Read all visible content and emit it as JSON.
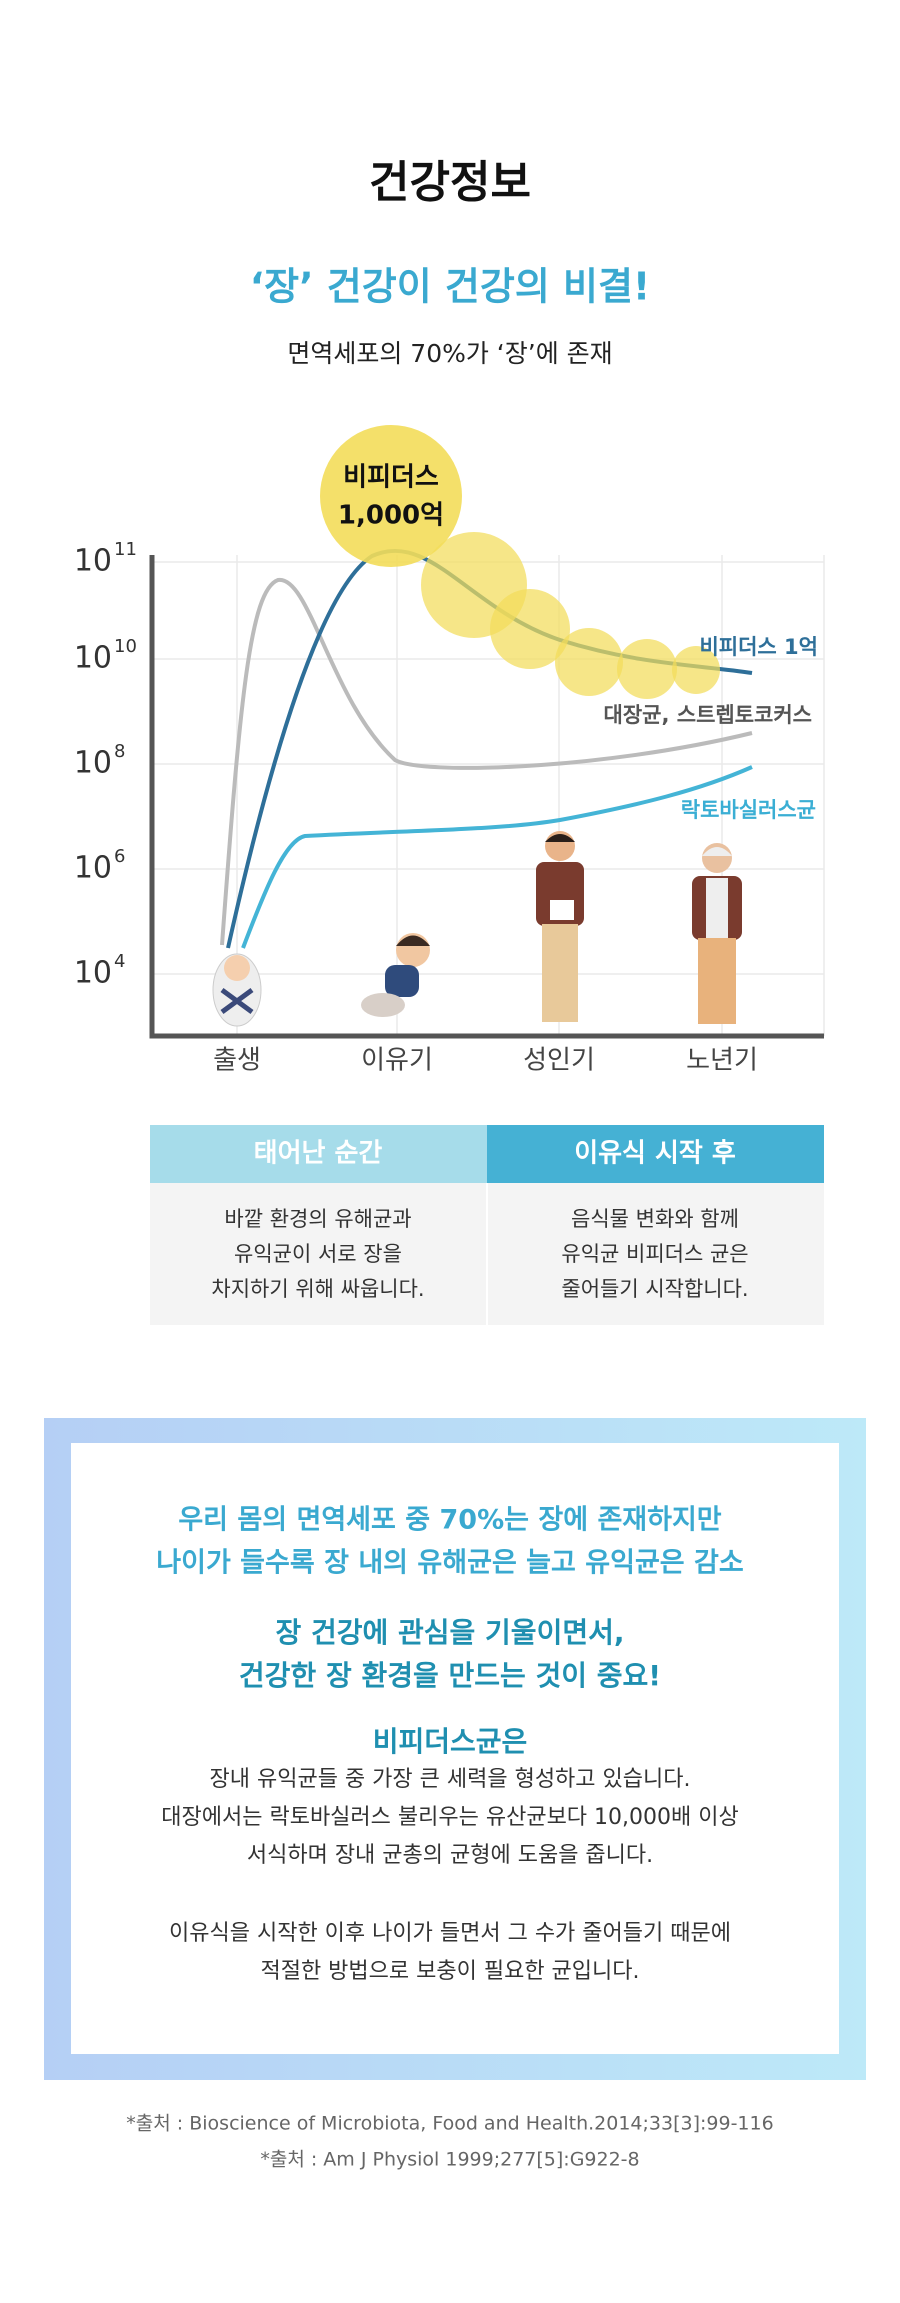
{
  "header": {
    "title": "건강정보",
    "headline": "‘장’ 건강이 건강의 비결!",
    "subtitle": "면역세포의 70%가 ‘장’에 존재"
  },
  "chart": {
    "yticks": [
      {
        "base": "10",
        "exp": "11"
      },
      {
        "base": "10",
        "exp": "10"
      },
      {
        "base": "10",
        "exp": "8"
      },
      {
        "base": "10",
        "exp": "6"
      },
      {
        "base": "10",
        "exp": "4"
      }
    ],
    "xlabels": [
      "출생",
      "이유기",
      "성인기",
      "노년기"
    ],
    "bubble_label": [
      "비피더스",
      "1,000억"
    ],
    "series_labels": [
      "비피더스 1억",
      "대장균, 스트렙토코커스",
      "락토바실러스균"
    ]
  },
  "table": {
    "headers": [
      "태어난 순간",
      "이유식 시작 후"
    ],
    "cells": [
      [
        "바깥 환경의 유해균과",
        "유익균이 서로 장을",
        "차지하기 위해 싸웁니다."
      ],
      [
        "음식물 변화와 함께",
        "유익균 비피더스 균은",
        "줄어들기 시작합니다."
      ]
    ]
  },
  "summary": {
    "highlight": [
      "우리 몸의 면역세포 중 70%는 장에 존재하지만",
      "나이가 들수록 장 내의 유해균은 늘고 유익균은 감소"
    ],
    "emphasis": [
      "장 건강에 관심을 기울이면서,",
      "건강한 장 환경을 만드는 것이 중요!"
    ],
    "subtitle": "비피더스균은",
    "body": [
      "장내 유익균들 중 가장 큰 세력을 형성하고 있습니다.",
      "대장에서는 락토바실러스 불리우는 유산균보다 10,000배 이상",
      "서식하며 장내 균총의 균형에 도움을 줍니다."
    ],
    "body2": [
      "이유식을 시작한 이후 나이가 들면서 그 수가 줄어들기 때문에",
      "적절한 방법으로 보충이 필요한 균입니다."
    ]
  },
  "sources": [
    "*출처 : Bioscience of Microbiota, Food and Health.2014;33[3]:99-116",
    "*출처 : Am J Physiol 1999;277[5]:G922-8"
  ]
}
